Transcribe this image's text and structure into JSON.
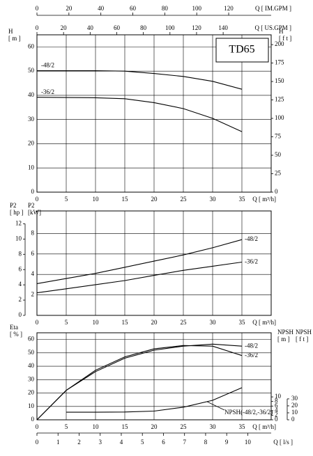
{
  "chart_data": [
    {
      "type": "line",
      "title": "TD65",
      "x": [
        0,
        5,
        10,
        15,
        20,
        25,
        30,
        35
      ],
      "xlim": [
        0,
        40
      ],
      "xticks": [
        0,
        5,
        10,
        15,
        20,
        25,
        30,
        35
      ],
      "xlabel": "Q [ m³/h]",
      "ylim": [
        0,
        65
      ],
      "yticks": [
        0,
        10,
        20,
        30,
        40,
        50,
        60
      ],
      "ylabel": [
        "H",
        "[ m ]"
      ],
      "y2lim": [
        0,
        213.3
      ],
      "y2ticks": [
        0,
        25,
        50,
        75,
        100,
        125,
        150,
        175,
        200
      ],
      "y2label": [
        "H",
        "[ f t ]"
      ],
      "y2_side": "right",
      "grid": true,
      "top_axes": [
        {
          "label": "Q [ IM.GPM ]",
          "lim": [
            0,
            146.6
          ],
          "ticks": [
            0,
            20,
            40,
            60,
            80,
            100,
            120
          ]
        },
        {
          "label": "Q [ US.GPM ]",
          "lim": [
            0,
            176.1
          ],
          "ticks": [
            0,
            20,
            40,
            60,
            80,
            100,
            120,
            140
          ]
        }
      ],
      "series": [
        {
          "name": "-48/2",
          "color": "#000000",
          "values": [
            50.2,
            50.2,
            50.2,
            50,
            49,
            47.8,
            45.8,
            42.5
          ]
        },
        {
          "name": "-36/2",
          "color": "#000000",
          "values": [
            39.2,
            39.1,
            39,
            38.6,
            37,
            34.5,
            30.5,
            25
          ]
        }
      ]
    },
    {
      "type": "line",
      "x": [
        0,
        5,
        10,
        15,
        20,
        25,
        30,
        35
      ],
      "xlim": [
        0,
        40
      ],
      "xticks": [
        0,
        5,
        10,
        15,
        20,
        25,
        30,
        35
      ],
      "xlabel": "Q [ m³/h]",
      "ylim": [
        0,
        10.2
      ],
      "yticks": [
        2,
        4,
        6,
        8
      ],
      "ylabel": [
        "P2",
        "[kW]"
      ],
      "y2lim": [
        0,
        13.68
      ],
      "y2ticks": [
        0,
        2,
        4,
        6,
        8,
        10,
        12
      ],
      "y2label": [
        "P2",
        "[ hp ]"
      ],
      "y2_side": "left",
      "grid": true,
      "series": [
        {
          "name": "-48/2",
          "color": "#000000",
          "values": [
            3.1,
            3.6,
            4.1,
            4.7,
            5.3,
            5.9,
            6.6,
            7.4
          ]
        },
        {
          "name": "-36/2",
          "color": "#000000",
          "values": [
            2.2,
            2.6,
            3.0,
            3.4,
            3.9,
            4.4,
            4.8,
            5.2
          ]
        }
      ]
    },
    {
      "type": "line",
      "x": [
        0,
        5,
        10,
        15,
        20,
        25,
        30,
        35
      ],
      "xlim": [
        0,
        40
      ],
      "xticks": [
        0,
        5,
        10,
        15,
        20,
        25,
        30,
        35
      ],
      "xlabel": "Q [ m³/h]",
      "ylim": [
        0,
        65
      ],
      "yticks": [
        0,
        10,
        20,
        30,
        40,
        50,
        60
      ],
      "ylabel": [
        "Eta",
        "[ % ]"
      ],
      "y2lim": [
        0,
        38
      ],
      "y2ticks": [
        0,
        2,
        4,
        6,
        8,
        10
      ],
      "y2label": [
        "NPSH",
        "[ m ]"
      ],
      "y2_side": "right",
      "y3lim": [
        0,
        124.7
      ],
      "y3ticks": [
        0,
        10,
        20,
        30
      ],
      "y3label": [
        "NPSH",
        "[ f t ]"
      ],
      "grid": true,
      "bottom_axis": {
        "label": "Q [ l/s ]",
        "lim": [
          0,
          11.11
        ],
        "ticks": [
          0,
          1,
          2,
          3,
          4,
          5,
          6,
          7,
          8,
          9,
          10
        ]
      },
      "series": [
        {
          "name": "-48/2",
          "color": "#000000",
          "values": [
            0,
            22,
            36,
            46,
            52,
            55,
            56.5,
            55
          ]
        },
        {
          "name": "-36/2",
          "color": "#000000",
          "values": [
            0,
            22,
            37,
            47,
            53,
            55.5,
            55,
            48
          ]
        },
        {
          "name": "NPSH(-48/2,-36/2)",
          "color": "#000000",
          "axis": "y2",
          "values": [
            null,
            3.3,
            3.3,
            3.4,
            3.8,
            5.5,
            8.5,
            14
          ]
        }
      ]
    }
  ]
}
